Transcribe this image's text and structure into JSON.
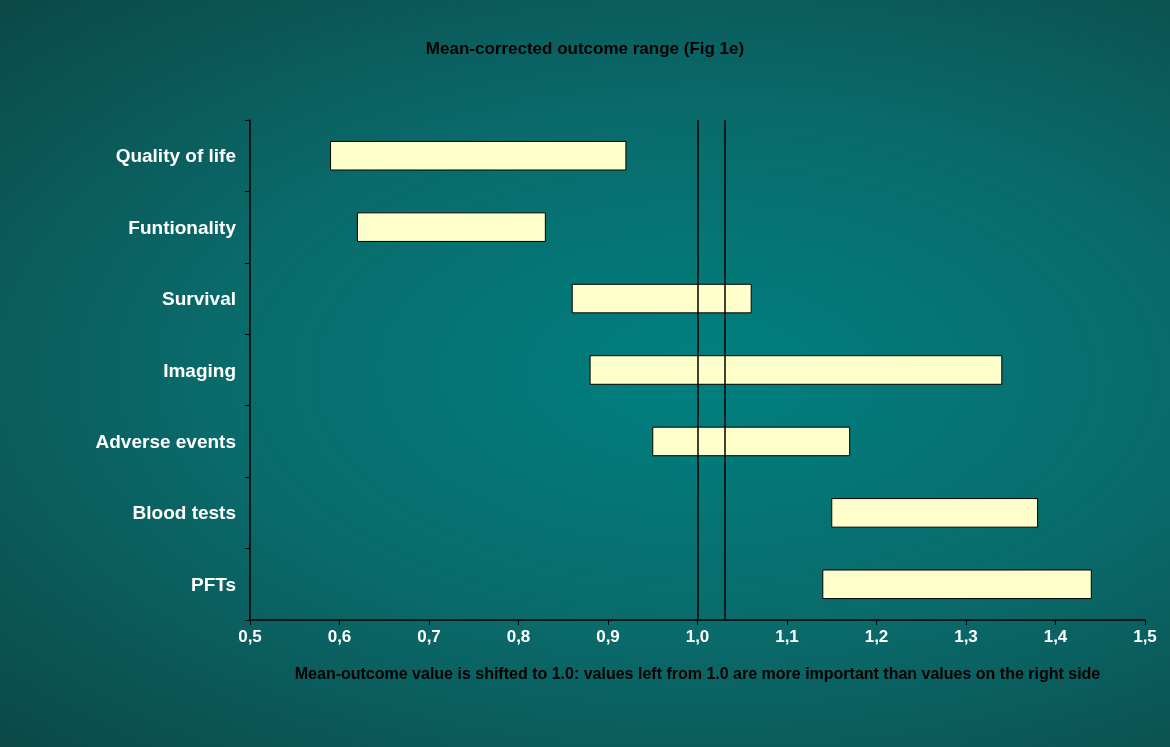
{
  "chart_data": {
    "type": "bar",
    "orientation": "horizontal",
    "title": "Mean-corrected outcome range (Fig 1e)",
    "xlabel": "Mean-outcome value is shifted to 1.0: values left from 1.0 are more important than values on the right side",
    "categories": [
      "Quality of life",
      "Funtionality",
      "Survival",
      "Imaging",
      "Adverse events",
      "Blood tests",
      "PFTs"
    ],
    "base": [
      0.59,
      0.62,
      0.86,
      0.88,
      0.95,
      1.15,
      1.14
    ],
    "values": [
      0.33,
      0.21,
      0.2,
      0.46,
      0.22,
      0.23,
      0.3
    ],
    "color": "#ffffcc",
    "xlim": [
      0.5,
      1.5
    ],
    "xticks": [
      {
        "value": 0.5,
        "label": "0,5"
      },
      {
        "value": 0.6,
        "label": "0,6"
      },
      {
        "value": 0.7,
        "label": "0,7"
      },
      {
        "value": 0.8,
        "label": "0,8"
      },
      {
        "value": 0.9,
        "label": "0,9"
      },
      {
        "value": 1.0,
        "label": "1,0"
      },
      {
        "value": 1.1,
        "label": "1,1"
      },
      {
        "value": 1.2,
        "label": "1,2"
      },
      {
        "value": 1.3,
        "label": "1,3"
      },
      {
        "value": 1.4,
        "label": "1,4"
      },
      {
        "value": 1.5,
        "label": "1,5"
      }
    ],
    "ref_lines": [
      {
        "axis": "x",
        "value": 1.0,
        "color": "#000000"
      },
      {
        "axis": "x",
        "value": 1.03,
        "color": "#000000"
      }
    ],
    "grid": false
  }
}
